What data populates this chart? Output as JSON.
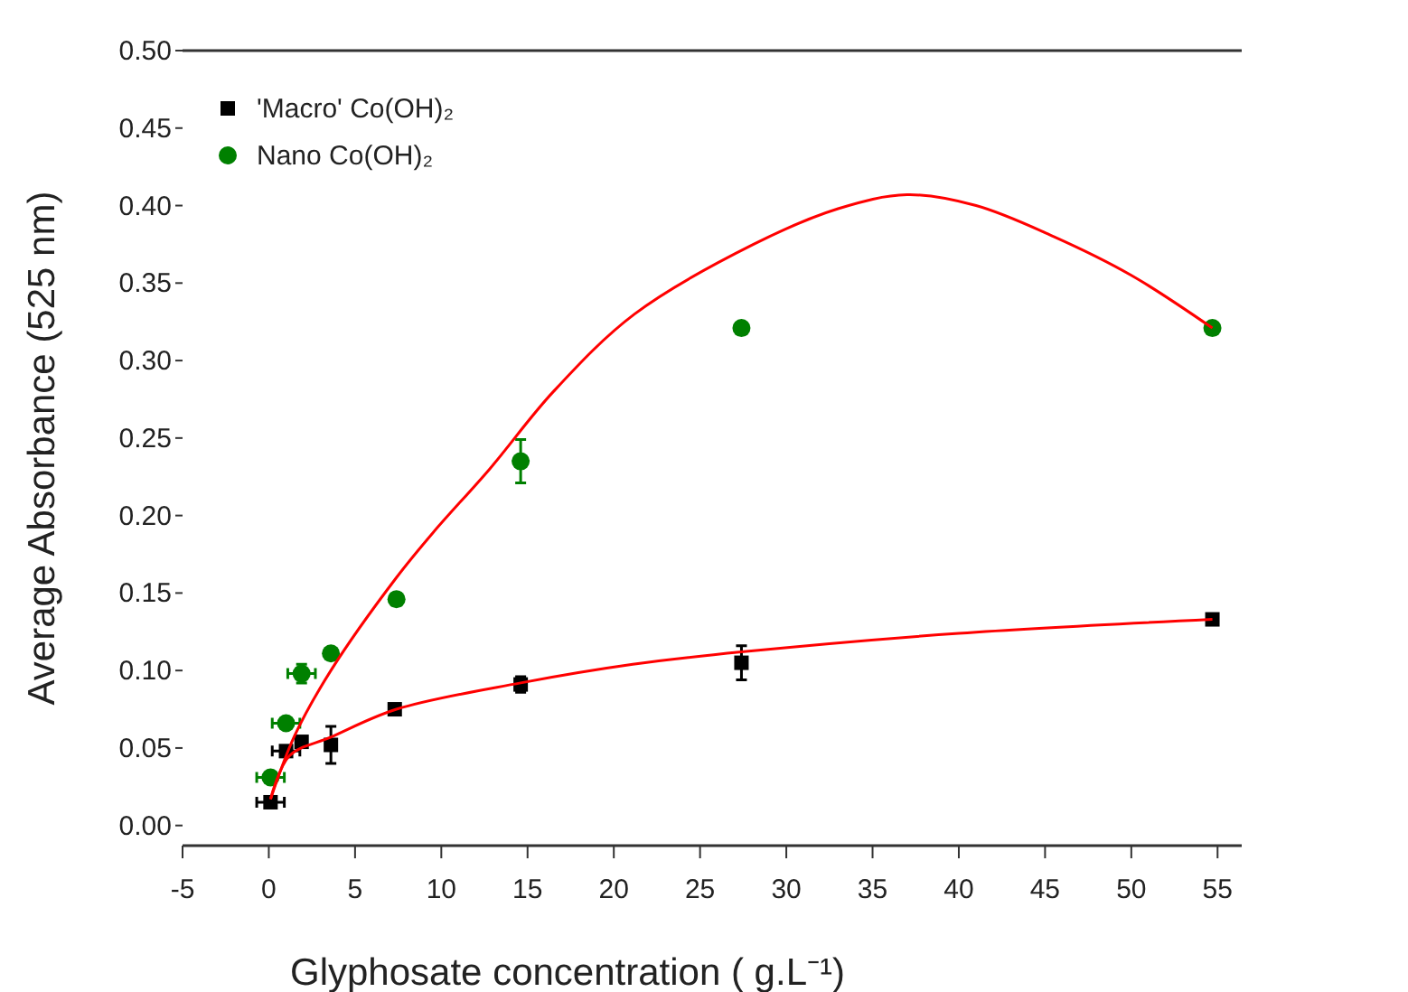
{
  "chart_data": {
    "type": "scatter",
    "xlabel": "Glyphosate concentration ( g.L⁻¹)",
    "ylabel": "Average Absorbance (525 nm)",
    "xlim": [
      -5,
      56.4
    ],
    "xticks": [
      -5,
      0,
      5,
      10,
      15,
      20,
      25,
      30,
      35,
      40,
      45,
      50,
      55
    ],
    "ylim": [
      -0.013,
      0.5
    ],
    "yticks": [
      {
        "value": 0,
        "label": "0.00"
      },
      {
        "value": 0.05,
        "label": "0.05"
      },
      {
        "value": 0.1,
        "label": "0.10"
      },
      {
        "value": 0.15,
        "label": "0.15"
      },
      {
        "value": 0.2,
        "label": "0.20"
      },
      {
        "value": 0.25,
        "label": "0.25"
      },
      {
        "value": 0.3,
        "label": "0.30"
      },
      {
        "value": 0.35,
        "label": "0.35"
      },
      {
        "value": 0.4,
        "label": "0.40"
      },
      {
        "value": 0.45,
        "label": "0.45"
      },
      {
        "value": 0.5,
        "label": "0.50"
      }
    ],
    "legend": "top left",
    "grid": false,
    "series": [
      {
        "name": "'Macro' Co(OH)₂",
        "color": "#000000",
        "marker": "square",
        "x": [
          0.1,
          1.0,
          1.9,
          3.6,
          7.3,
          14.6,
          27.4,
          54.7
        ],
        "values": [
          0.015,
          0.048,
          0.054,
          0.052,
          0.075,
          0.091,
          0.105,
          0.133
        ],
        "errors": [
          null,
          null,
          null,
          0.012,
          null,
          0.005,
          0.011,
          null
        ],
        "xerrors": [
          0.8,
          0.8,
          null,
          null,
          null,
          null,
          null,
          null
        ]
      },
      {
        "name": "Nano Co(OH)₂",
        "color": "#008000",
        "marker": "circle",
        "x": [
          0.1,
          1.0,
          1.9,
          3.6,
          7.4,
          14.6,
          27.4,
          54.7
        ],
        "values": [
          0.031,
          0.066,
          0.098,
          0.111,
          0.146,
          0.235,
          0.321,
          0.321
        ],
        "errors": [
          null,
          null,
          0.006,
          null,
          0.004,
          0.014,
          null,
          null
        ],
        "xerrors": [
          0.8,
          0.8,
          0.8,
          null,
          null,
          null,
          null,
          null
        ]
      },
      {
        "type": "line",
        "color": "#ff0000",
        "x": [
          0.1,
          1.2,
          3.6,
          7.4,
          14.6,
          21.1,
          27.4,
          40,
          54.7
        ],
        "values": [
          0.017,
          0.045,
          0.057,
          0.075,
          0.092,
          0.104,
          0.112,
          0.124,
          0.133
        ]
      },
      {
        "type": "line",
        "color": "#ff0000",
        "x": [
          0.1,
          1.5,
          3.6,
          7.4,
          9.6,
          12.8,
          16.5,
          21.2,
          28.1,
          33,
          37,
          41,
          45.5,
          50,
          54.7
        ],
        "values": [
          0.017,
          0.058,
          0.1,
          0.16,
          0.19,
          0.23,
          0.28,
          0.33,
          0.375,
          0.398,
          0.407,
          0.4,
          0.38,
          0.355,
          0.321
        ]
      }
    ]
  }
}
